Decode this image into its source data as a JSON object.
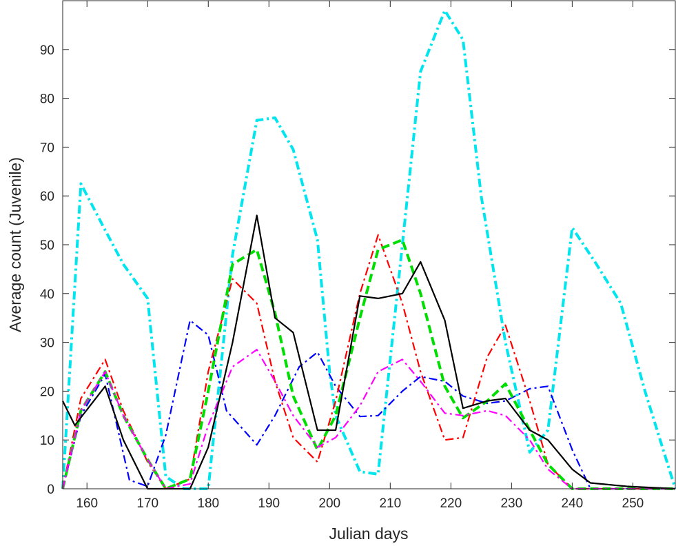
{
  "chart_data": {
    "type": "line",
    "title": "",
    "xlabel": "Julian days",
    "ylabel": "Average count (Juvenile)",
    "xlim": [
      156,
      257
    ],
    "ylim": [
      0,
      100
    ],
    "x_ticks": [
      160,
      170,
      180,
      190,
      200,
      210,
      220,
      230,
      240,
      250
    ],
    "y_ticks": [
      0,
      10,
      20,
      30,
      40,
      50,
      60,
      70,
      80,
      90
    ],
    "grid": false,
    "legend": "none",
    "series": [
      {
        "color": "#00e5ee",
        "style": "dash-dot",
        "weight": "thick",
        "points": [
          [
            156,
            0
          ],
          [
            159,
            62.5
          ],
          [
            163,
            53
          ],
          [
            166,
            46
          ],
          [
            170,
            39
          ],
          [
            173,
            2.5
          ],
          [
            176,
            0
          ],
          [
            180,
            0
          ],
          [
            184,
            48
          ],
          [
            188,
            75.5
          ],
          [
            191,
            76
          ],
          [
            194,
            69.5
          ],
          [
            198,
            51
          ],
          [
            200,
            24
          ],
          [
            201,
            15
          ],
          [
            205,
            3.5
          ],
          [
            208,
            3
          ],
          [
            212,
            50
          ],
          [
            215,
            85.5
          ],
          [
            219,
            98
          ],
          [
            222,
            92
          ],
          [
            225,
            60
          ],
          [
            229,
            30
          ],
          [
            233,
            7.5
          ],
          [
            236,
            12
          ],
          [
            240,
            53.5
          ],
          [
            244,
            46
          ],
          [
            248,
            38
          ],
          [
            252,
            20
          ],
          [
            257,
            0
          ]
        ]
      },
      {
        "color": "#0000ff",
        "style": "dash-dot",
        "weight": "normal",
        "points": [
          [
            156,
            0
          ],
          [
            159,
            15
          ],
          [
            163,
            23.5
          ],
          [
            167,
            1.8
          ],
          [
            170,
            0.5
          ],
          [
            173,
            11
          ],
          [
            177,
            34.5
          ],
          [
            180,
            31.5
          ],
          [
            183,
            16
          ],
          [
            188,
            9
          ],
          [
            191,
            15
          ],
          [
            195,
            25
          ],
          [
            198,
            28
          ],
          [
            201,
            21
          ],
          [
            205,
            14.8
          ],
          [
            208,
            15
          ],
          [
            212,
            20
          ],
          [
            215,
            23
          ],
          [
            219,
            22
          ],
          [
            222,
            19
          ],
          [
            226,
            17.5
          ],
          [
            229,
            18
          ],
          [
            233,
            20.5
          ],
          [
            236,
            21
          ],
          [
            240,
            8
          ],
          [
            243,
            0
          ],
          [
            257,
            0
          ]
        ]
      },
      {
        "color": "#ff0000",
        "style": "dash-dot",
        "weight": "normal",
        "points": [
          [
            156,
            0
          ],
          [
            159,
            18.5
          ],
          [
            163,
            26.5
          ],
          [
            166,
            16
          ],
          [
            170,
            5.5
          ],
          [
            173,
            0
          ],
          [
            177,
            2
          ],
          [
            180,
            24
          ],
          [
            184,
            43
          ],
          [
            188,
            38
          ],
          [
            191,
            22
          ],
          [
            194,
            10.5
          ],
          [
            198,
            5.5
          ],
          [
            201,
            18
          ],
          [
            205,
            40
          ],
          [
            208,
            52
          ],
          [
            212,
            38
          ],
          [
            215,
            24
          ],
          [
            219,
            10
          ],
          [
            222,
            10.5
          ],
          [
            226,
            27
          ],
          [
            229,
            33.5
          ],
          [
            233,
            18
          ],
          [
            236,
            5
          ],
          [
            240,
            0
          ],
          [
            257,
            0
          ]
        ]
      },
      {
        "color": "#00dd00",
        "style": "dashed",
        "weight": "thick",
        "points": [
          [
            156,
            0
          ],
          [
            159,
            16
          ],
          [
            163,
            24
          ],
          [
            166,
            15
          ],
          [
            170,
            6
          ],
          [
            173,
            0
          ],
          [
            177,
            2
          ],
          [
            180,
            20
          ],
          [
            184,
            46
          ],
          [
            188,
            49
          ],
          [
            191,
            36
          ],
          [
            194,
            19
          ],
          [
            198,
            8
          ],
          [
            201,
            15
          ],
          [
            205,
            35
          ],
          [
            208,
            49
          ],
          [
            212,
            51
          ],
          [
            215,
            40
          ],
          [
            219,
            21
          ],
          [
            222,
            14.5
          ],
          [
            226,
            18
          ],
          [
            229,
            21.5
          ],
          [
            233,
            12
          ],
          [
            236,
            5
          ],
          [
            240,
            0
          ],
          [
            257,
            0
          ]
        ]
      },
      {
        "color": "#ff00ff",
        "style": "dash-dot",
        "weight": "normal",
        "points": [
          [
            156,
            0
          ],
          [
            159,
            16
          ],
          [
            163,
            24
          ],
          [
            166,
            15
          ],
          [
            170,
            6
          ],
          [
            173,
            0
          ],
          [
            177,
            1
          ],
          [
            180,
            13
          ],
          [
            184,
            25
          ],
          [
            188,
            28.5
          ],
          [
            191,
            22
          ],
          [
            194,
            15
          ],
          [
            198,
            8.5
          ],
          [
            201,
            10.5
          ],
          [
            205,
            17
          ],
          [
            208,
            24
          ],
          [
            212,
            26.5
          ],
          [
            215,
            22
          ],
          [
            219,
            15.5
          ],
          [
            222,
            15
          ],
          [
            226,
            16
          ],
          [
            229,
            15
          ],
          [
            233,
            10
          ],
          [
            236,
            4
          ],
          [
            240,
            0
          ],
          [
            257,
            0
          ]
        ]
      },
      {
        "color": "#000000",
        "style": "solid",
        "weight": "normal",
        "points": [
          [
            156,
            18
          ],
          [
            158,
            13
          ],
          [
            163,
            21
          ],
          [
            166,
            10
          ],
          [
            170,
            0
          ],
          [
            174,
            0
          ],
          [
            177,
            0
          ],
          [
            180,
            8.5
          ],
          [
            184,
            30
          ],
          [
            188,
            56
          ],
          [
            191,
            35
          ],
          [
            194,
            32
          ],
          [
            198,
            12
          ],
          [
            201,
            12
          ],
          [
            205,
            39.5
          ],
          [
            208,
            39
          ],
          [
            212,
            40
          ],
          [
            215,
            46.5
          ],
          [
            219,
            34.5
          ],
          [
            222,
            16.5
          ],
          [
            226,
            18
          ],
          [
            229,
            18.5
          ],
          [
            233,
            12
          ],
          [
            236,
            10
          ],
          [
            240,
            4
          ],
          [
            243,
            1.2
          ],
          [
            249,
            0.5
          ],
          [
            257,
            0
          ]
        ]
      }
    ]
  }
}
